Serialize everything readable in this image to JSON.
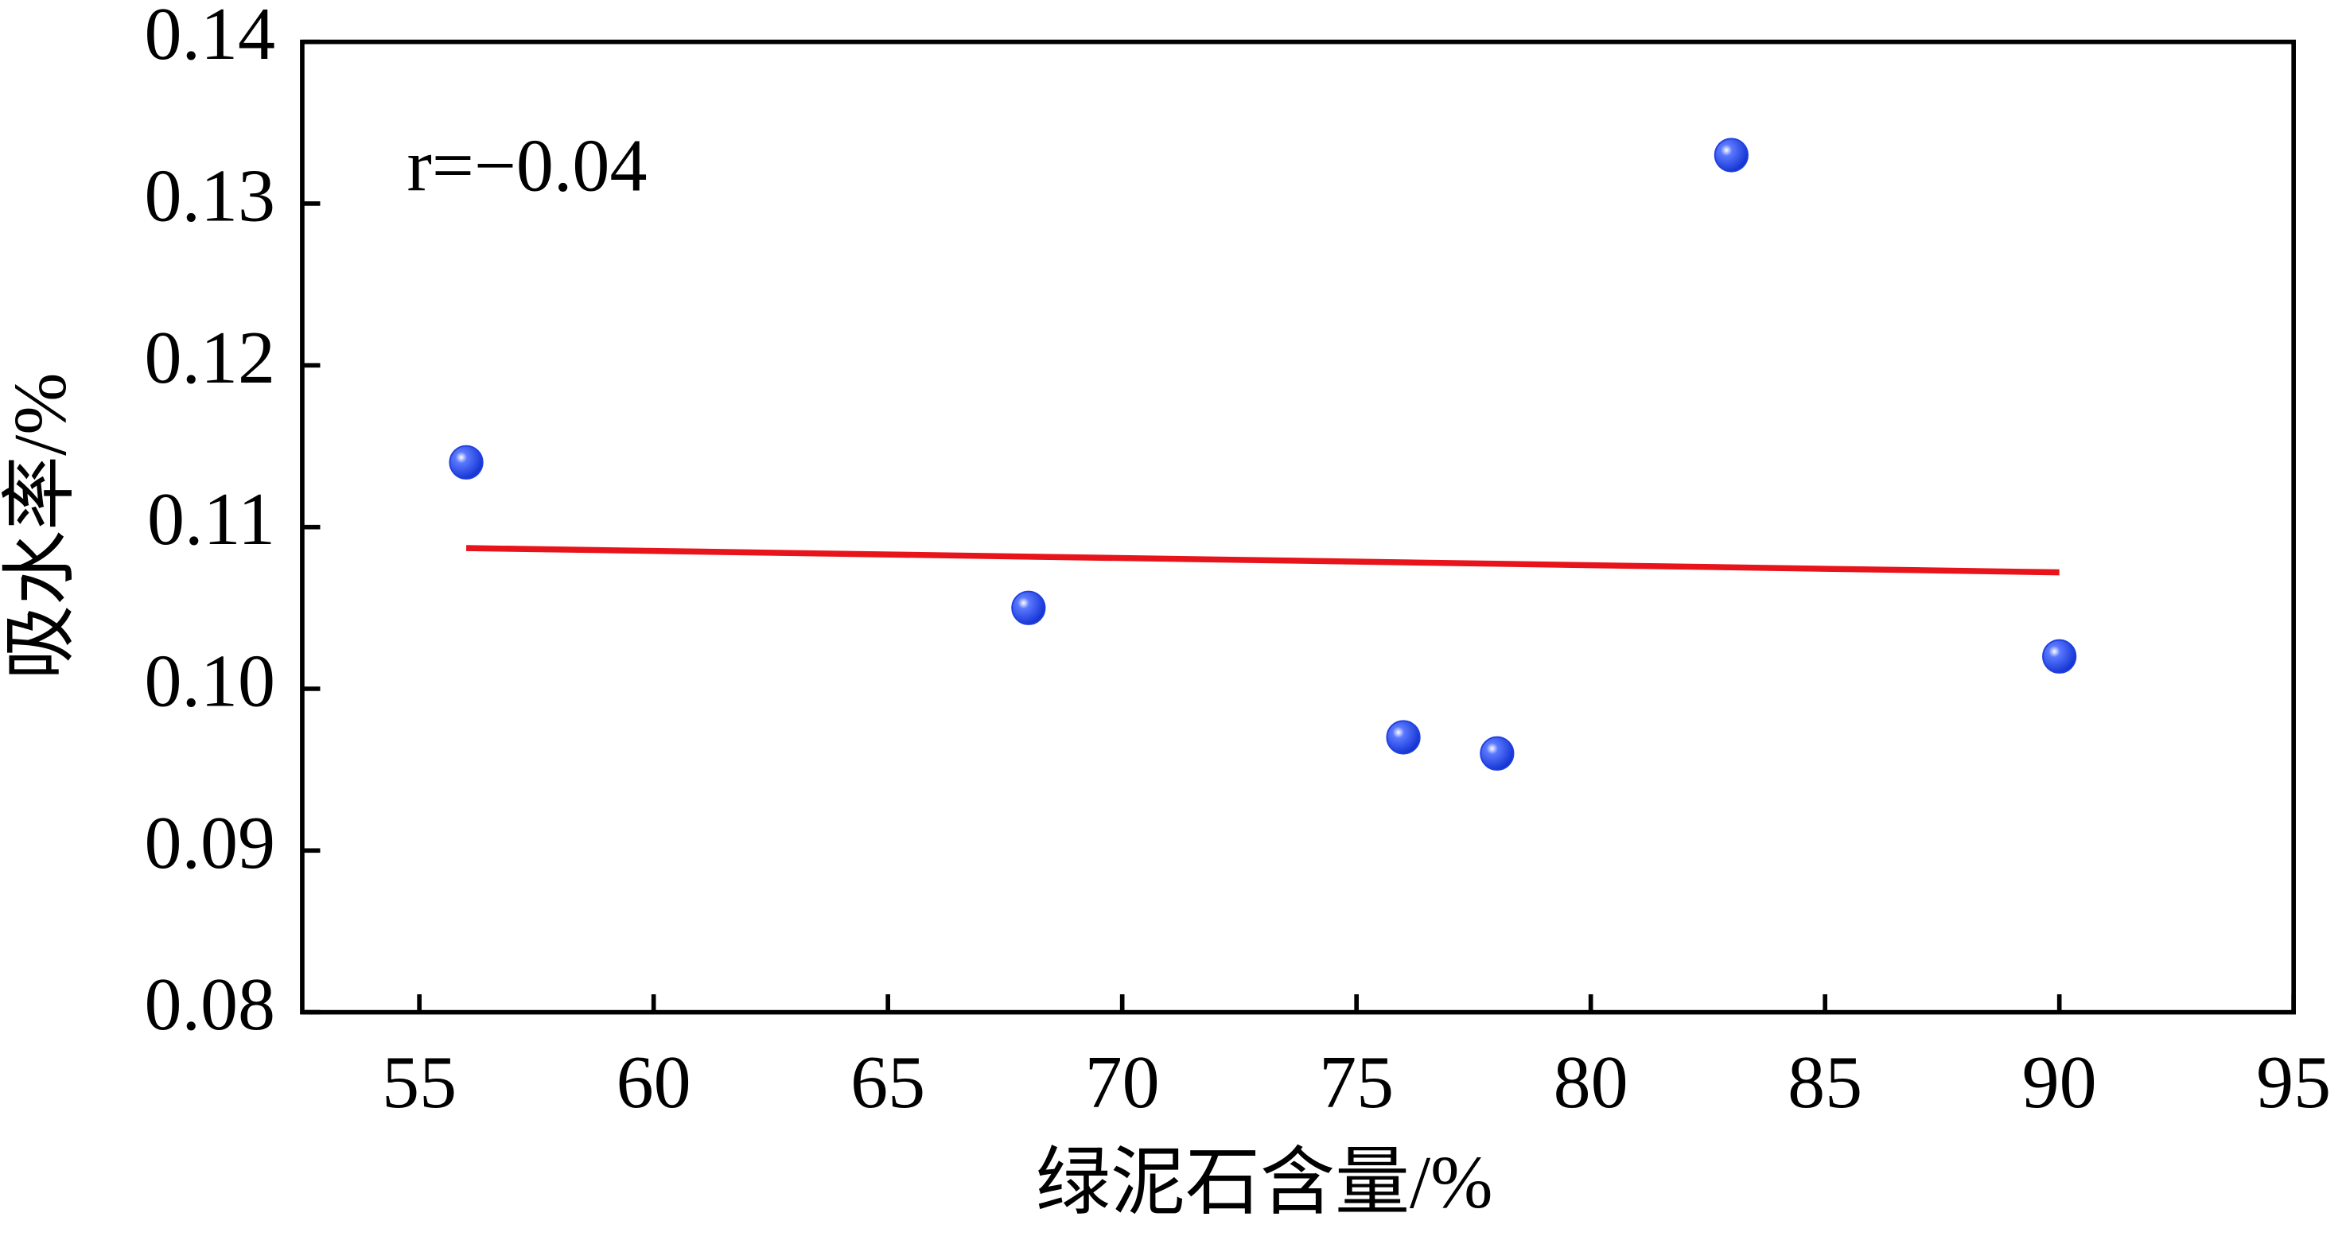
{
  "chart_data": {
    "type": "scatter",
    "x_label": "绿泥石含量/%",
    "y_label": "吸水率/%",
    "annotation": "r=−0.04",
    "xlim": [
      52.5,
      95
    ],
    "xticks": [
      55,
      60,
      65,
      70,
      75,
      80,
      85,
      90,
      95
    ],
    "ylim": [
      0.08,
      0.14
    ],
    "yticks": [
      0.08,
      0.09,
      {
        "value": 0.1,
        "label": "0.10"
      },
      0.11,
      0.12,
      0.13,
      0.14
    ],
    "series": [
      {
        "color": "#1f3fe0",
        "x": [
          56,
          68,
          76,
          78,
          83,
          90
        ],
        "values": [
          0.114,
          0.105,
          0.097,
          0.096,
          0.133,
          0.102
        ]
      }
    ],
    "fit_line": {
      "color": "#e8141b",
      "x": [
        56,
        90
      ],
      "values": [
        0.1087,
        0.1072
      ]
    }
  }
}
